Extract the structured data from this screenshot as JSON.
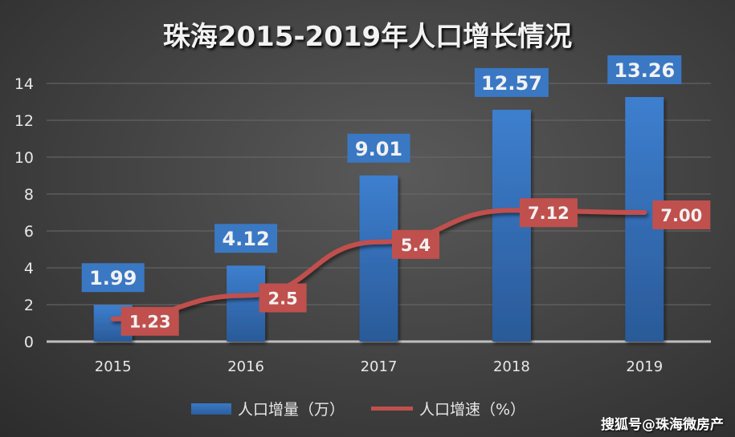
{
  "chart_data": {
    "type": "bar+line",
    "title": "珠海2015-2019年人口增长情况",
    "categories": [
      "2015",
      "2016",
      "2017",
      "2018",
      "2019"
    ],
    "series": [
      {
        "name": "人口增量（万）",
        "type": "bar",
        "values": [
          1.99,
          4.12,
          9.01,
          12.57,
          13.26
        ],
        "labels": [
          "1.99",
          "4.12",
          "9.01",
          "12.57",
          "13.26"
        ],
        "color": "#3a78c4"
      },
      {
        "name": "人口增速（%）",
        "type": "line",
        "values": [
          1.23,
          2.5,
          5.4,
          7.12,
          7.0
        ],
        "labels": [
          "1.23",
          "2.5",
          "5.4",
          "7.12",
          "7.00"
        ],
        "color": "#c0504d"
      }
    ],
    "ylim": [
      0,
      14
    ],
    "yticks": [
      "0",
      "2",
      "4",
      "6",
      "8",
      "10",
      "12",
      "14"
    ],
    "grid": true,
    "legend": "bottom"
  },
  "watermark": "搜狐号@珠海微房产"
}
